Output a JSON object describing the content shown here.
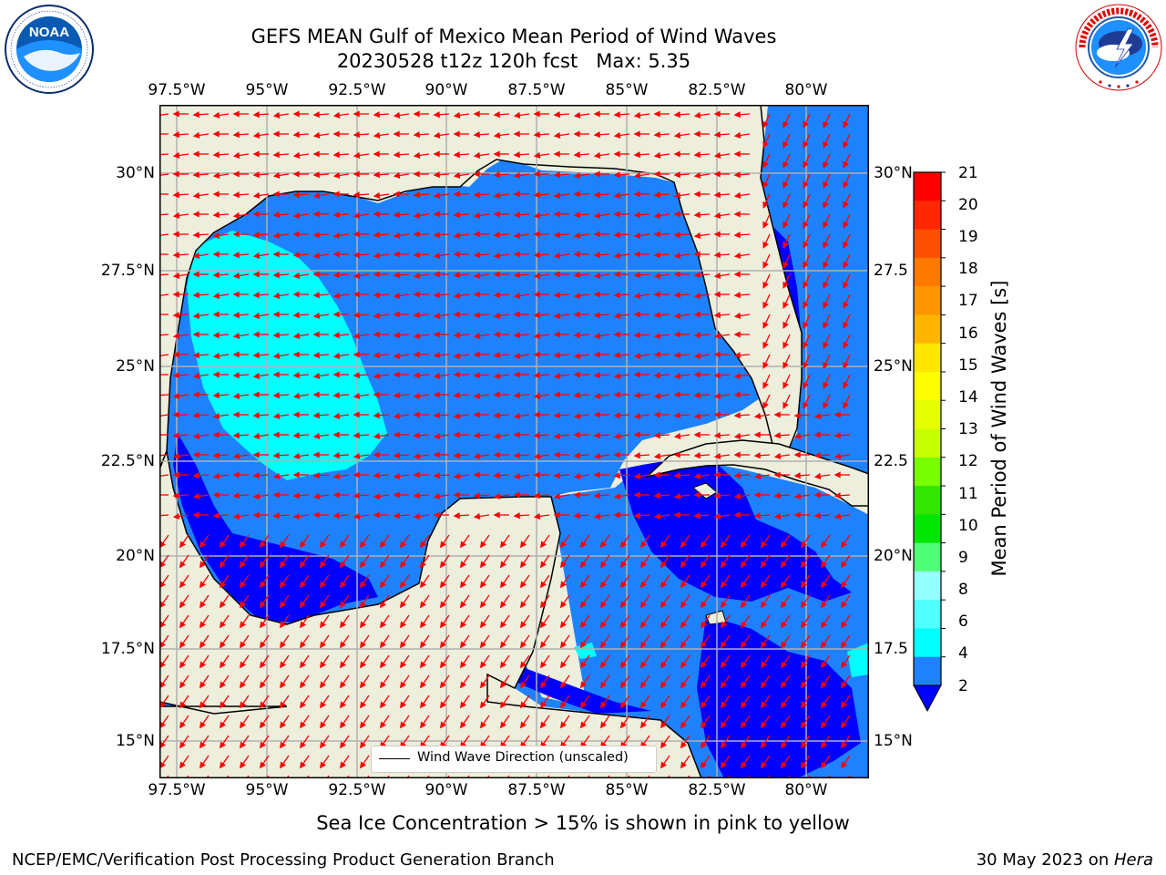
{
  "header": {
    "title_line1": "GEFS MEAN Gulf of Mexico Mean Period of Wind Waves",
    "title_line2": "20230528 t12z 120h fcst   Max: 5.35"
  },
  "logos": {
    "left": {
      "name": "NOAA",
      "ring_text": "NATIONAL OCEANIC AND ATMOSPHERIC ADMINISTRATION · U.S. DEPARTMENT OF COMMERCE"
    },
    "right": {
      "name": "NATIONAL WEATHER SERVICE"
    }
  },
  "map": {
    "lon_ticks": [
      "97.5°W",
      "95°W",
      "92.5°W",
      "90°W",
      "87.5°W",
      "85°W",
      "82.5°W",
      "80°W"
    ],
    "lat_ticks_left": [
      "30°N",
      "27.5°N",
      "25°N",
      "22.5°N",
      "20°N",
      "17.5°N",
      "15°N"
    ],
    "lat_ticks_right": [
      "30°N",
      "27.5",
      "25°N",
      "22.5",
      "20°N",
      "17.5",
      "15°N"
    ],
    "legend_text": "Wind Wave Direction (unscaled)",
    "colors": {
      "land": "#EEEEDC",
      "ocean_2_4": "#1E82FF",
      "ocean_below_2": "#0000FF",
      "ocean_4_6": "#00FFFF",
      "arrows": "#FF0000",
      "grid": "#B0B0B0"
    }
  },
  "colorbar": {
    "label": "Mean Period of Wind Waves [s]",
    "tick_labels": [
      "21",
      "20",
      "19",
      "18",
      "17",
      "16",
      "15",
      "14",
      "13",
      "12",
      "11",
      "10",
      "9",
      "8",
      "6",
      "4",
      "2"
    ],
    "colors_top_to_bottom": [
      "#FF0000",
      "#FF2800",
      "#FF5000",
      "#FF7800",
      "#FF9600",
      "#FFB400",
      "#FFE600",
      "#FFFF00",
      "#E6FF00",
      "#C8FF00",
      "#78FF00",
      "#32E600",
      "#00E600",
      "#50FF78",
      "#96FFFF",
      "#50FFFF",
      "#00FFFF",
      "#1E82FF"
    ],
    "extend_color": "#0000FF"
  },
  "caption": "Sea Ice Concentration > 15% is shown in pink to yellow",
  "footer": {
    "left": "NCEP/EMC/Verification Post Processing Product Generation Branch",
    "right_prefix": "30 May 2023 on ",
    "right_host": "Hera"
  }
}
